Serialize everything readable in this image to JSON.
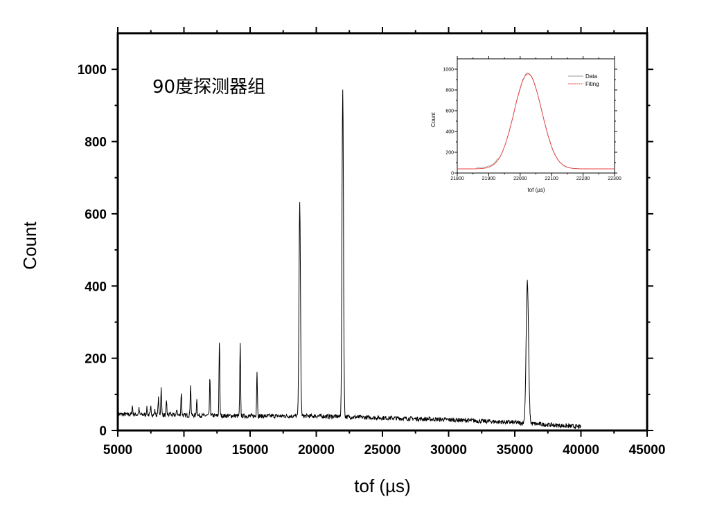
{
  "chart_data": [
    {
      "type": "line",
      "annotation": "90度探测器组",
      "xlabel": "tof (µs)",
      "ylabel": "Count",
      "xlim": [
        5000,
        45000
      ],
      "ylim": [
        0,
        1100
      ],
      "xticks": [
        5000,
        10000,
        15000,
        20000,
        25000,
        30000,
        35000,
        40000,
        45000
      ],
      "yticks": [
        0,
        200,
        400,
        600,
        800,
        1000
      ],
      "grid": false,
      "line_color": "#000000",
      "baseline": {
        "x": [
          5000,
          10000,
          15000,
          20000,
          25000,
          30000,
          35000,
          40000
        ],
        "y": [
          45,
          42,
          40,
          40,
          35,
          30,
          22,
          10
        ]
      },
      "peaks": {
        "x": [
          6100,
          6600,
          7200,
          7500,
          7800,
          8070,
          8280,
          8680,
          8960,
          9470,
          9800,
          10500,
          10970,
          11960,
          12680,
          14250,
          15520,
          18750,
          22000,
          35950
        ],
        "y": [
          68,
          60,
          62,
          65,
          55,
          90,
          120,
          78,
          50,
          60,
          106,
          129,
          86,
          142,
          249,
          238,
          166,
          628,
          948,
          412
        ]
      }
    },
    {
      "type": "line",
      "xlabel": "tof (µs)",
      "ylabel": "Count",
      "xlim": [
        21800,
        22300
      ],
      "ylim": [
        0,
        1100
      ],
      "xticks": [
        21800,
        21900,
        22000,
        22100,
        22200,
        22300
      ],
      "yticks": [
        0,
        200,
        400,
        600,
        800,
        1000
      ],
      "legend": "top-right",
      "series": [
        {
          "name": "Data",
          "color": "#999999",
          "peak_x": 22025,
          "peak_y": 955,
          "baseline": 40
        },
        {
          "name": "Fiting",
          "color": "#e8403c",
          "peak_x": 22025,
          "peak_y": 955,
          "baseline": 40
        }
      ]
    }
  ]
}
